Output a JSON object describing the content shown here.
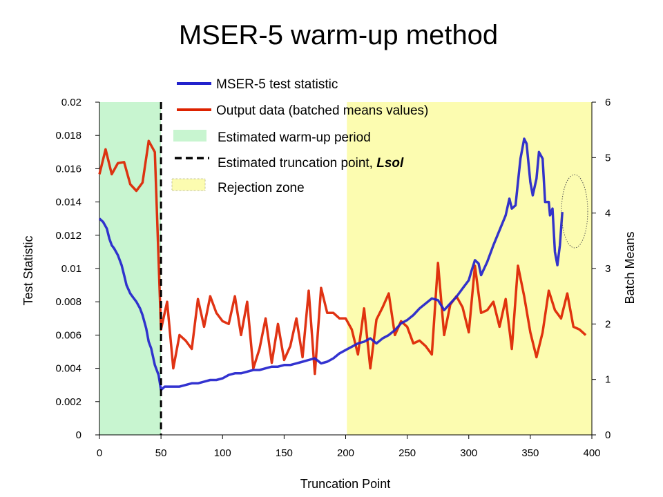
{
  "chart_data": {
    "type": "line",
    "title": "MSER-5 warm-up method",
    "xlabel": "Truncation Point",
    "ylabel_left": "Test Statistic",
    "ylabel_right": "Batch Means",
    "xlim": [
      0,
      400
    ],
    "ylim_left": [
      0,
      0.02
    ],
    "ylim_right": [
      0,
      6
    ],
    "x_ticks": [
      "0",
      "50",
      "100",
      "150",
      "200",
      "250",
      "300",
      "350",
      "400"
    ],
    "y_left_ticks": [
      "0",
      "0.002",
      "0.004",
      "0.006",
      "0.008",
      "0.01",
      "0.012",
      "0.014",
      "0.016",
      "0.018",
      "0.02"
    ],
    "y_right_ticks": [
      "0",
      "1",
      "2",
      "3",
      "4",
      "5",
      "6"
    ],
    "legend": {
      "test_statistic": "MSER-5 test statistic",
      "output_data": "Output data (batched means values)",
      "warmup_period": "Estimated warm-up period",
      "truncation_point_prefix": "Estimated truncation point, ",
      "truncation_point_var": "Lsol",
      "rejection_zone": "Rejection zone"
    },
    "colors": {
      "test_statistic": "#2222cc",
      "output_data": "#dd2200",
      "warmup_fill": "#c8f5d0",
      "rejection_fill": "#fcfcb0",
      "truncation_line": "#000000"
    },
    "warmup_period": [
      0,
      50
    ],
    "truncation_point": 50,
    "rejection_zone": [
      201,
      400
    ],
    "series": [
      {
        "name": "MSER-5 test statistic",
        "axis": "left",
        "x": [
          0,
          3,
          6,
          8,
          10,
          12,
          15,
          18,
          20,
          22,
          25,
          27,
          30,
          33,
          35,
          38,
          40,
          42,
          45,
          48,
          50,
          53,
          55,
          60,
          65,
          70,
          75,
          80,
          85,
          90,
          95,
          100,
          105,
          110,
          115,
          120,
          125,
          130,
          135,
          140,
          145,
          150,
          155,
          160,
          165,
          170,
          175,
          180,
          185,
          190,
          195,
          200,
          205,
          210,
          215,
          220,
          225,
          230,
          235,
          240,
          245,
          250,
          255,
          260,
          265,
          270,
          275,
          280,
          285,
          290,
          295,
          300,
          302,
          305,
          308,
          310,
          315,
          320,
          325,
          330,
          333,
          335,
          338,
          340,
          342,
          345,
          347,
          350,
          352,
          355,
          357,
          360,
          362,
          365,
          366,
          368,
          370,
          372,
          374,
          376
        ],
        "y": [
          0.013,
          0.0128,
          0.0124,
          0.0118,
          0.0114,
          0.0112,
          0.0108,
          0.0102,
          0.0096,
          0.009,
          0.0085,
          0.0083,
          0.008,
          0.0076,
          0.0072,
          0.0064,
          0.0056,
          0.0052,
          0.0042,
          0.0036,
          0.0027,
          0.0029,
          0.0029,
          0.0029,
          0.0029,
          0.003,
          0.0031,
          0.0031,
          0.0032,
          0.0033,
          0.0033,
          0.0034,
          0.0036,
          0.0037,
          0.0037,
          0.0038,
          0.0039,
          0.0039,
          0.004,
          0.0041,
          0.0041,
          0.0042,
          0.0042,
          0.0043,
          0.0044,
          0.0045,
          0.0046,
          0.0043,
          0.0044,
          0.0046,
          0.0049,
          0.0051,
          0.0053,
          0.0055,
          0.0056,
          0.0058,
          0.0055,
          0.0058,
          0.006,
          0.0063,
          0.0067,
          0.0069,
          0.0072,
          0.0076,
          0.0079,
          0.0082,
          0.0081,
          0.0075,
          0.0079,
          0.0083,
          0.0088,
          0.0093,
          0.0098,
          0.0105,
          0.0103,
          0.0096,
          0.0104,
          0.0114,
          0.0123,
          0.0132,
          0.0142,
          0.0136,
          0.0138,
          0.0152,
          0.0166,
          0.0178,
          0.0175,
          0.0152,
          0.0144,
          0.0154,
          0.017,
          0.0166,
          0.014,
          0.014,
          0.0132,
          0.0136,
          0.011,
          0.0102,
          0.0114,
          0.0134
        ]
      },
      {
        "name": "Output data (batched means values)",
        "axis": "right",
        "x": [
          0,
          5,
          10,
          15,
          20,
          25,
          30,
          35,
          40,
          45,
          50,
          55,
          60,
          65,
          70,
          75,
          80,
          85,
          90,
          95,
          100,
          105,
          110,
          115,
          120,
          125,
          130,
          135,
          140,
          145,
          150,
          155,
          160,
          165,
          170,
          175,
          180,
          185,
          190,
          195,
          200,
          205,
          210,
          215,
          220,
          225,
          230,
          235,
          240,
          245,
          250,
          255,
          260,
          265,
          270,
          275,
          280,
          285,
          290,
          295,
          300,
          305,
          310,
          315,
          320,
          325,
          330,
          335,
          340,
          345,
          350,
          355,
          360,
          365,
          370,
          375,
          380,
          385,
          390,
          395
        ],
        "y": [
          4.7,
          5.15,
          4.7,
          4.9,
          4.92,
          4.52,
          4.4,
          4.55,
          5.3,
          5.1,
          1.9,
          2.4,
          1.2,
          1.8,
          1.7,
          1.55,
          2.45,
          1.95,
          2.5,
          2.2,
          2.05,
          2.0,
          2.5,
          1.8,
          2.4,
          1.2,
          1.55,
          2.1,
          1.3,
          2.0,
          1.35,
          1.6,
          2.1,
          1.4,
          2.6,
          1.1,
          2.65,
          2.2,
          2.2,
          2.1,
          2.1,
          1.9,
          1.45,
          2.28,
          1.2,
          2.08,
          2.3,
          2.55,
          1.8,
          2.05,
          1.95,
          1.65,
          1.7,
          1.6,
          1.45,
          3.1,
          1.8,
          2.35,
          2.5,
          2.3,
          1.85,
          3.05,
          2.2,
          2.25,
          2.4,
          1.95,
          2.45,
          1.55,
          3.05,
          2.5,
          1.85,
          1.4,
          1.85,
          2.6,
          2.25,
          2.1,
          2.55,
          1.95,
          1.9,
          1.8
        ]
      }
    ]
  }
}
